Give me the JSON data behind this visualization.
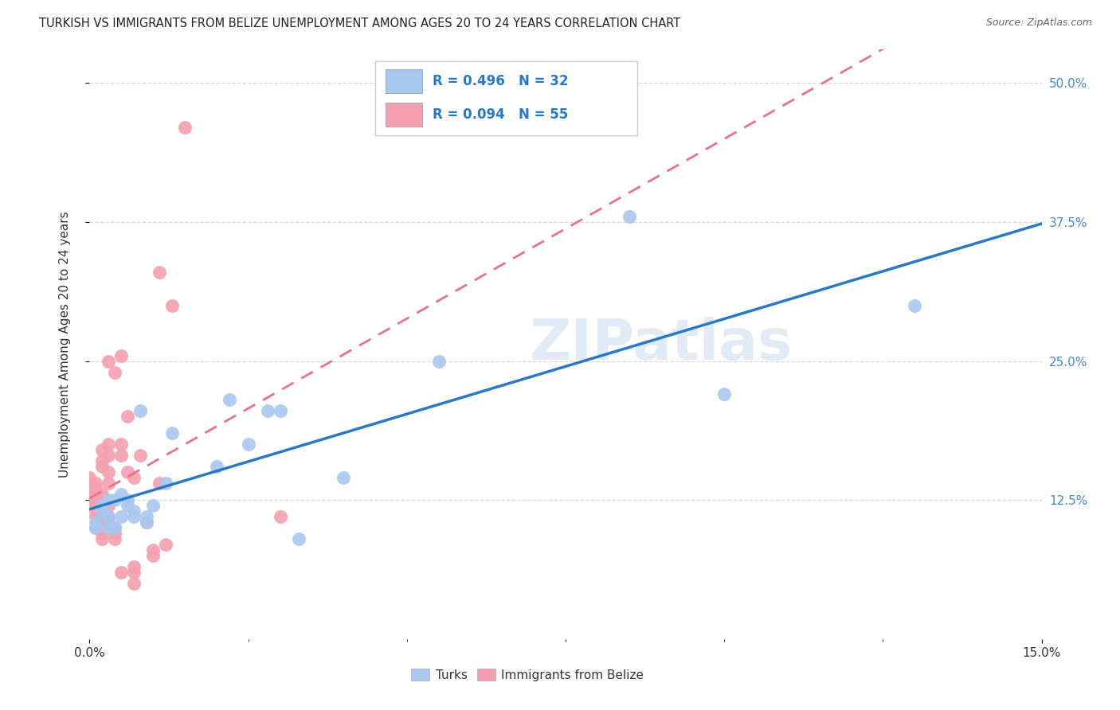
{
  "title": "TURKISH VS IMMIGRANTS FROM BELIZE UNEMPLOYMENT AMONG AGES 20 TO 24 YEARS CORRELATION CHART",
  "source": "Source: ZipAtlas.com",
  "ylabel": "Unemployment Among Ages 20 to 24 years",
  "xlim": [
    0.0,
    0.15
  ],
  "ylim": [
    0.0,
    0.53
  ],
  "background_color": "#ffffff",
  "grid_color": "#d8d8d8",
  "turks_color": "#a8c8f0",
  "belize_color": "#f4a0b0",
  "turks_R": 0.496,
  "turks_N": 32,
  "belize_R": 0.094,
  "belize_N": 55,
  "turks_x": [
    0.001,
    0.001,
    0.002,
    0.002,
    0.003,
    0.003,
    0.003,
    0.004,
    0.004,
    0.005,
    0.005,
    0.006,
    0.006,
    0.007,
    0.007,
    0.008,
    0.009,
    0.009,
    0.01,
    0.012,
    0.013,
    0.02,
    0.022,
    0.025,
    0.028,
    0.03,
    0.033,
    0.04,
    0.055,
    0.085,
    0.1,
    0.13
  ],
  "turks_y": [
    0.105,
    0.1,
    0.115,
    0.12,
    0.125,
    0.1,
    0.11,
    0.125,
    0.1,
    0.13,
    0.11,
    0.12,
    0.125,
    0.115,
    0.11,
    0.205,
    0.11,
    0.105,
    0.12,
    0.14,
    0.185,
    0.155,
    0.215,
    0.175,
    0.205,
    0.205,
    0.09,
    0.145,
    0.25,
    0.38,
    0.22,
    0.3
  ],
  "belize_x": [
    0.0,
    0.0,
    0.0,
    0.0,
    0.0,
    0.001,
    0.001,
    0.001,
    0.001,
    0.001,
    0.001,
    0.001,
    0.001,
    0.002,
    0.002,
    0.002,
    0.002,
    0.002,
    0.002,
    0.002,
    0.002,
    0.002,
    0.003,
    0.003,
    0.003,
    0.003,
    0.003,
    0.003,
    0.003,
    0.003,
    0.003,
    0.004,
    0.004,
    0.004,
    0.004,
    0.005,
    0.005,
    0.005,
    0.005,
    0.006,
    0.006,
    0.007,
    0.007,
    0.007,
    0.007,
    0.008,
    0.009,
    0.01,
    0.01,
    0.011,
    0.011,
    0.012,
    0.013,
    0.015,
    0.03
  ],
  "belize_y": [
    0.125,
    0.13,
    0.135,
    0.14,
    0.145,
    0.1,
    0.11,
    0.115,
    0.12,
    0.125,
    0.13,
    0.135,
    0.14,
    0.09,
    0.095,
    0.1,
    0.11,
    0.12,
    0.13,
    0.155,
    0.16,
    0.17,
    0.1,
    0.105,
    0.11,
    0.12,
    0.14,
    0.15,
    0.165,
    0.175,
    0.25,
    0.09,
    0.095,
    0.1,
    0.24,
    0.165,
    0.175,
    0.255,
    0.06,
    0.15,
    0.2,
    0.05,
    0.06,
    0.065,
    0.145,
    0.165,
    0.105,
    0.075,
    0.08,
    0.14,
    0.33,
    0.085,
    0.3,
    0.46,
    0.11
  ],
  "watermark_text": "ZIPatlas",
  "legend_box_color": "#ffffff",
  "turks_line_color": "#2878c8",
  "belize_line_color": "#e87090",
  "right_tick_color": "#4488cc",
  "legend_text_color": "#2878c8"
}
